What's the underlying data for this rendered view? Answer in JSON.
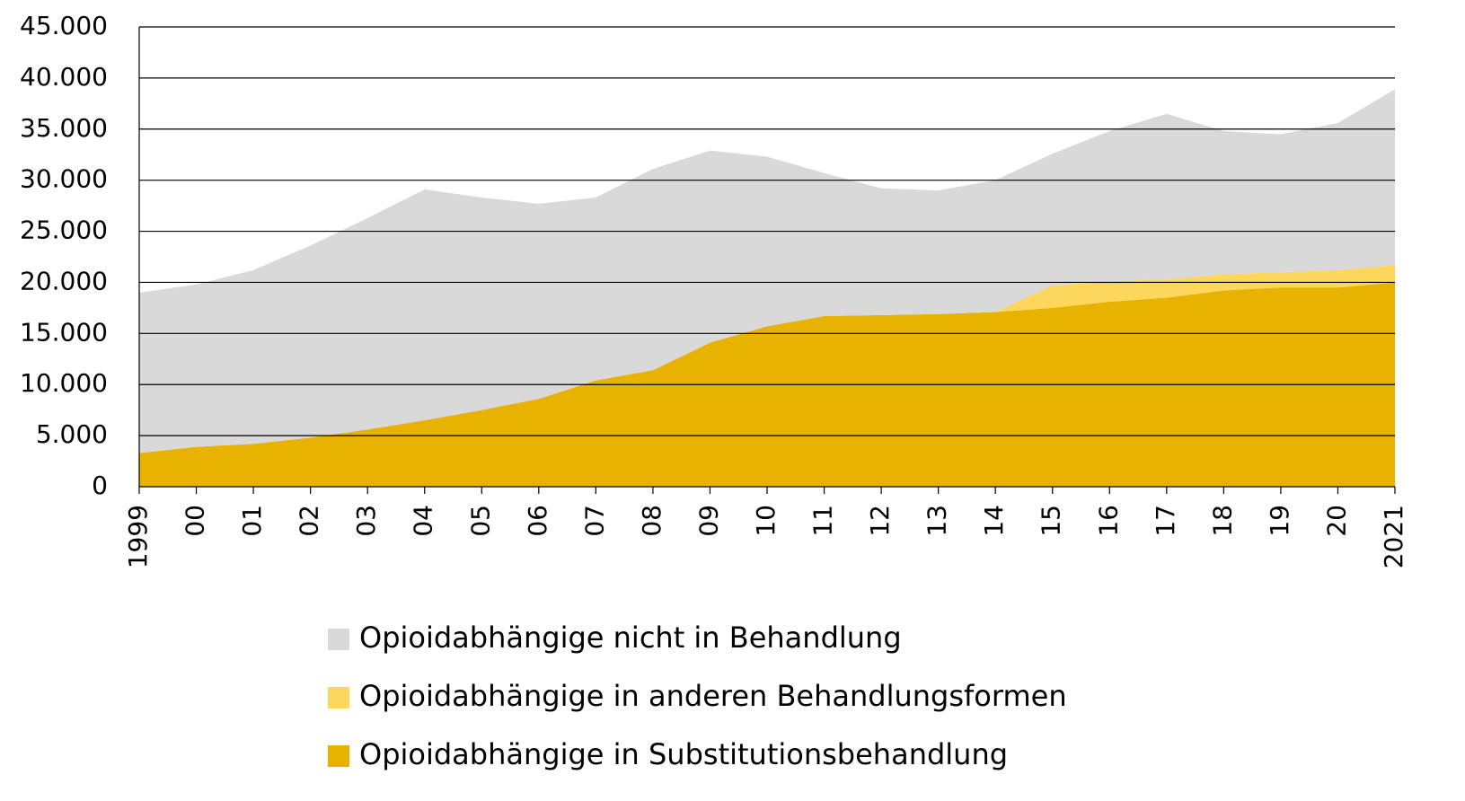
{
  "chart_data": {
    "type": "stacked_area",
    "categories": [
      "1999",
      "00",
      "01",
      "02",
      "03",
      "04",
      "05",
      "06",
      "07",
      "08",
      "09",
      "10",
      "11",
      "12",
      "13",
      "14",
      "15",
      "16",
      "17",
      "18",
      "19",
      "20",
      "2021"
    ],
    "series": [
      {
        "name": "Opioidabhängige in Substitutionsbehandlung",
        "color": "#e8b200",
        "values": [
          3300,
          3900,
          4200,
          4800,
          5600,
          6500,
          7500,
          8600,
          10400,
          11400,
          14100,
          15700,
          16700,
          16800,
          16900,
          17100,
          17500,
          18100,
          18500,
          19200,
          19500,
          19500,
          20000
        ]
      },
      {
        "name": "Opioidabhängige in anderen Behandlungsformen",
        "color": "#fdd65c",
        "values": [
          0,
          0,
          0,
          0,
          0,
          0,
          0,
          0,
          0,
          0,
          0,
          0,
          0,
          0,
          0,
          0,
          2200,
          2000,
          1800,
          1600,
          1500,
          1700,
          1700
        ]
      },
      {
        "name": "Opioidabhängige nicht in Behandlung",
        "color": "#d9d9d9",
        "values": [
          15700,
          15900,
          17000,
          18800,
          20700,
          22600,
          20800,
          19100,
          17900,
          19700,
          18800,
          16600,
          14000,
          12400,
          12100,
          12900,
          12900,
          14700,
          16200,
          14000,
          13500,
          14400,
          17200
        ]
      }
    ],
    "ylim": [
      0,
      45000
    ],
    "yticks": [
      0,
      {
        "value": 5000,
        "label": "5.000"
      },
      {
        "value": 10000,
        "label": "10.000"
      },
      {
        "value": 15000,
        "label": "15.000"
      },
      {
        "value": 20000,
        "label": "20.000"
      },
      {
        "value": 25000,
        "label": "25.000"
      },
      {
        "value": 30000,
        "label": "30.000"
      },
      {
        "value": 35000,
        "label": "35.000"
      },
      {
        "value": 40000,
        "label": "40.000"
      },
      {
        "value": 45000,
        "label": "45.000"
      }
    ],
    "grid": true
  }
}
